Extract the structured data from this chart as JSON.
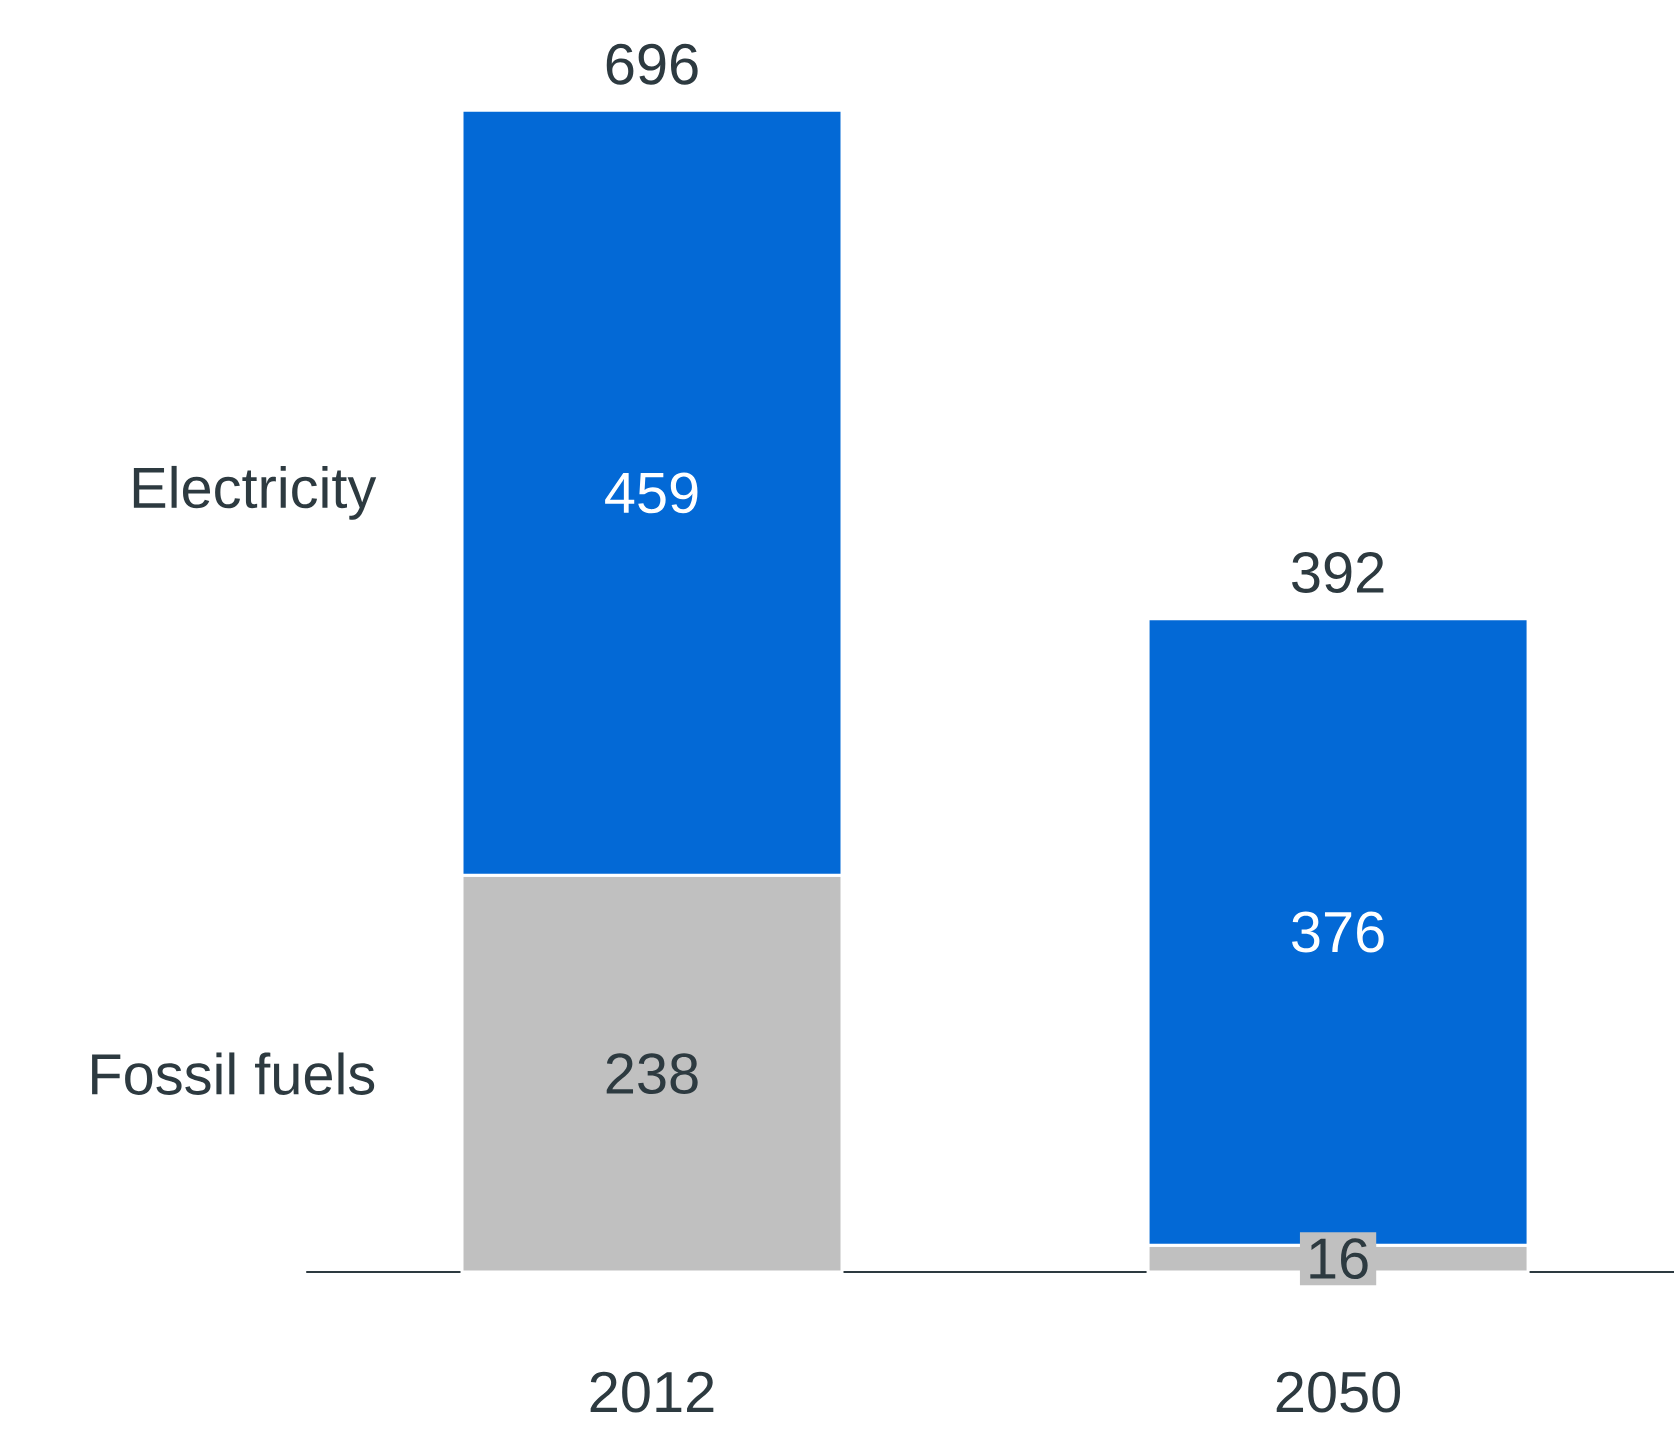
{
  "chart_data": {
    "type": "bar",
    "stacked": true,
    "categories": [
      "2012",
      "2050"
    ],
    "series": [
      {
        "name": "Fossil fuels",
        "color": "#c0c0c0",
        "values": [
          238,
          16
        ]
      },
      {
        "name": "Electricity",
        "color": "#0369d6",
        "values": [
          459,
          376
        ]
      }
    ],
    "data_labels": true,
    "totals": [
      "696",
      "392"
    ]
  }
}
